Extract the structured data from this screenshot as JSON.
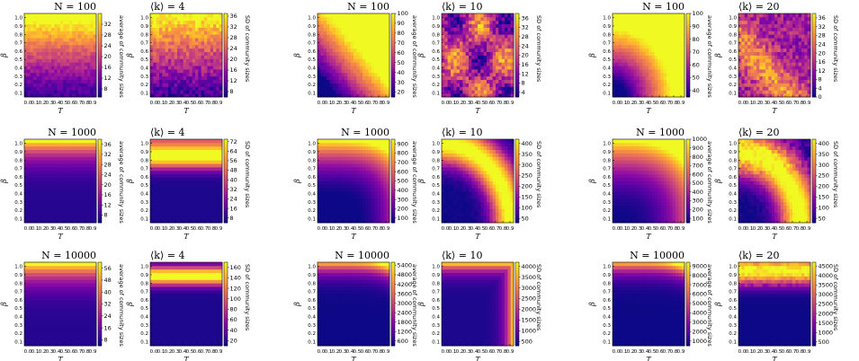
{
  "figure": {
    "x_label": "T",
    "y_label": "β",
    "colorbar_labels": [
      "average of community sizes",
      "SD of community sizes"
    ],
    "x_ticks": [
      "0.0",
      "0.1",
      "0.2",
      "0.3",
      "0.4",
      "0.5",
      "0.6",
      "0.7",
      "0.8",
      "0.9"
    ],
    "y_ticks": [
      "0.1",
      "0.2",
      "0.3",
      "0.4",
      "0.5",
      "0.6",
      "0.7",
      "0.8",
      "0.9",
      "1.0"
    ]
  },
  "chart_data": [
    {
      "type": "heatmap",
      "row": 0,
      "col": 0,
      "title": "N = 100",
      "metric": "average of community sizes",
      "colorbar_ticks": [
        "8",
        "12",
        "16",
        "20",
        "24",
        "28",
        "32"
      ],
      "vmin": 5,
      "vmax": 36,
      "pattern": "avg_n100"
    },
    {
      "type": "heatmap",
      "row": 0,
      "col": 1,
      "title": "⟨k⟩ = 4",
      "metric": "SD of community sizes",
      "colorbar_ticks": [
        "8",
        "12",
        "16",
        "20",
        "24",
        "28",
        "32",
        "36"
      ],
      "vmin": 6,
      "vmax": 37,
      "pattern": "sd_n100_k4"
    },
    {
      "type": "heatmap",
      "row": 0,
      "col": 2,
      "title": "N = 100",
      "metric": "average of community sizes",
      "colorbar_ticks": [
        "20",
        "30",
        "40",
        "50",
        "60",
        "70",
        "80",
        "90",
        "100"
      ],
      "vmin": 15,
      "vmax": 100,
      "pattern": "avg_n100_k10"
    },
    {
      "type": "heatmap",
      "row": 0,
      "col": 3,
      "title": "⟨k⟩ = 10",
      "metric": "SD of community sizes",
      "colorbar_ticks": [
        "4",
        "8",
        "12",
        "16",
        "20",
        "24",
        "28",
        "32",
        "36"
      ],
      "vmin": 2,
      "vmax": 38,
      "pattern": "sd_n100_k10"
    },
    {
      "type": "heatmap",
      "row": 0,
      "col": 4,
      "title": "N = 100",
      "metric": "average of community sizes",
      "colorbar_ticks": [
        "40",
        "50",
        "60",
        "70",
        "80",
        "90",
        "100"
      ],
      "vmin": 35,
      "vmax": 100,
      "pattern": "avg_n100_k20"
    },
    {
      "type": "heatmap",
      "row": 0,
      "col": 5,
      "title": "⟨k⟩ = 20",
      "metric": "SD of community sizes",
      "colorbar_ticks": [
        "0",
        "4",
        "8",
        "12",
        "16",
        "20",
        "24",
        "28",
        "32",
        "36"
      ],
      "vmin": 0,
      "vmax": 38,
      "pattern": "sd_n100_k20"
    },
    {
      "type": "heatmap",
      "row": 1,
      "col": 0,
      "title": "N = 1000",
      "metric": "average of community sizes",
      "colorbar_ticks": [
        "8",
        "12",
        "16",
        "20",
        "24",
        "28",
        "32",
        "36"
      ],
      "vmin": 5,
      "vmax": 38,
      "pattern": "avg_top"
    },
    {
      "type": "heatmap",
      "row": 1,
      "col": 1,
      "title": "⟨k⟩ = 4",
      "metric": "SD of community sizes",
      "colorbar_ticks": [
        "8",
        "16",
        "24",
        "32",
        "40",
        "48",
        "56",
        "64",
        "72"
      ],
      "vmin": 4,
      "vmax": 74,
      "pattern": "sd_top"
    },
    {
      "type": "heatmap",
      "row": 1,
      "col": 2,
      "title": "N = 1000",
      "metric": "average of community sizes",
      "colorbar_ticks": [
        "100",
        "200",
        "300",
        "400",
        "500",
        "600",
        "700",
        "800",
        "900"
      ],
      "vmin": 50,
      "vmax": 950,
      "pattern": "avg_mid"
    },
    {
      "type": "heatmap",
      "row": 1,
      "col": 3,
      "title": "⟨k⟩ = 10",
      "metric": "SD of community sizes",
      "colorbar_ticks": [
        "50",
        "100",
        "150",
        "200",
        "250",
        "300",
        "350",
        "400"
      ],
      "vmin": 30,
      "vmax": 420,
      "pattern": "sd_mid"
    },
    {
      "type": "heatmap",
      "row": 1,
      "col": 4,
      "title": "N = 1000",
      "metric": "average of community sizes",
      "colorbar_ticks": [
        "100",
        "200",
        "300",
        "400",
        "500",
        "600",
        "700",
        "800",
        "900",
        "1000"
      ],
      "vmin": 50,
      "vmax": 1000,
      "pattern": "avg_big"
    },
    {
      "type": "heatmap",
      "row": 1,
      "col": 5,
      "title": "⟨k⟩ = 20",
      "metric": "SD of community sizes",
      "colorbar_ticks": [
        "50",
        "100",
        "150",
        "200",
        "250",
        "300",
        "350",
        "400"
      ],
      "vmin": 30,
      "vmax": 420,
      "pattern": "sd_big"
    },
    {
      "type": "heatmap",
      "row": 2,
      "col": 0,
      "title": "N = 10000",
      "metric": "average of community sizes",
      "colorbar_ticks": [
        "8",
        "16",
        "24",
        "32",
        "40",
        "48",
        "56"
      ],
      "vmin": 4,
      "vmax": 60,
      "pattern": "avg_top"
    },
    {
      "type": "heatmap",
      "row": 2,
      "col": 1,
      "title": "⟨k⟩ = 4",
      "metric": "SD of community sizes",
      "colorbar_ticks": [
        "20",
        "40",
        "60",
        "80",
        "100",
        "120",
        "140",
        "160"
      ],
      "vmin": 10,
      "vmax": 170,
      "pattern": "sd_top2"
    },
    {
      "type": "heatmap",
      "row": 2,
      "col": 2,
      "title": "N = 10000",
      "metric": "average of community sizes",
      "colorbar_ticks": [
        "600",
        "1200",
        "1800",
        "2400",
        "3000",
        "3600",
        "4200",
        "4800",
        "5400"
      ],
      "vmin": 300,
      "vmax": 5600,
      "pattern": "avg_low"
    },
    {
      "type": "heatmap",
      "row": 2,
      "col": 3,
      "title": "⟨k⟩ = 10",
      "metric": "SD of community sizes",
      "colorbar_ticks": [
        "500",
        "1000",
        "1500",
        "2000",
        "2500",
        "3000",
        "3500",
        "4000"
      ],
      "vmin": 300,
      "vmax": 4200,
      "pattern": "sd_low"
    },
    {
      "type": "heatmap",
      "row": 2,
      "col": 4,
      "title": "N = 10000",
      "metric": "average of community sizes",
      "colorbar_ticks": [
        "1000",
        "2000",
        "3000",
        "4000",
        "5000",
        "6000",
        "7000",
        "8000",
        "9000"
      ],
      "vmin": 500,
      "vmax": 9400,
      "pattern": "avg_low"
    },
    {
      "type": "heatmap",
      "row": 2,
      "col": 5,
      "title": "⟨k⟩ = 20",
      "metric": "SD of community sizes",
      "colorbar_ticks": [
        "500",
        "1000",
        "1500",
        "2000",
        "2500",
        "3000",
        "3500",
        "4000",
        "4500"
      ],
      "vmin": 300,
      "vmax": 4700,
      "pattern": "sd_low2"
    }
  ]
}
